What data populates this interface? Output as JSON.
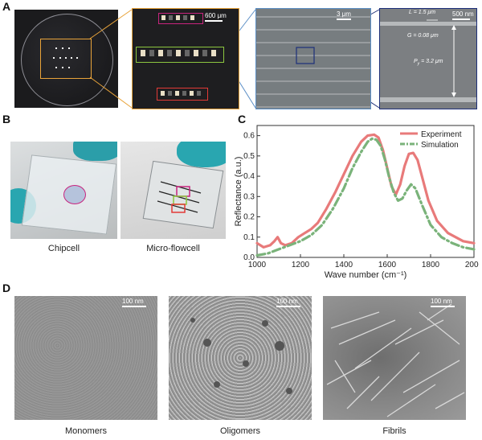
{
  "panels": {
    "A": {
      "label": "A",
      "scale_600": "600 μm",
      "scale_3": "3 μm",
      "scale_500": "500 nm",
      "L": "L = 1.5 μm",
      "G": "G = 0.08 μm",
      "Py": "P",
      "Py_sub": "y",
      "Py_val": " = 3.2 μm",
      "colors": {
        "orange": "#e8a33a",
        "magenta": "#c8247e",
        "green": "#8cc63f",
        "red": "#e23a36",
        "steel": "#5c8fc6",
        "navy": "#1d2f7a"
      }
    },
    "B": {
      "label": "B",
      "cap_left": "Chipcell",
      "cap_right": "Micro-flowcell"
    },
    "C": {
      "label": "C"
    },
    "D": {
      "label": "D",
      "scale": "100 nm",
      "cap1": "Monomers",
      "cap2": "Oligomers",
      "cap3": "Fibrils"
    }
  },
  "chart_data": {
    "type": "line",
    "title": "",
    "xlabel": "Wave number (cm⁻¹)",
    "ylabel": "Reflectance (a.u.)",
    "xlim": [
      1000,
      2000
    ],
    "ylim": [
      0,
      0.65
    ],
    "xticks": [
      1000,
      1200,
      1400,
      1600,
      1800,
      2000
    ],
    "yticks": [
      0.0,
      0.1,
      0.2,
      0.3,
      0.4,
      0.5,
      0.6
    ],
    "legend_position": "top-right",
    "series": [
      {
        "name": "Experiment",
        "color": "#e87a7a",
        "style": "solid",
        "x": [
          1000,
          1030,
          1060,
          1080,
          1095,
          1110,
          1130,
          1160,
          1190,
          1220,
          1250,
          1280,
          1320,
          1360,
          1400,
          1440,
          1480,
          1510,
          1540,
          1560,
          1580,
          1600,
          1620,
          1640,
          1660,
          1680,
          1700,
          1720,
          1740,
          1760,
          1790,
          1830,
          1880,
          1950,
          2000
        ],
        "y": [
          0.07,
          0.05,
          0.06,
          0.08,
          0.1,
          0.07,
          0.06,
          0.07,
          0.1,
          0.12,
          0.14,
          0.17,
          0.24,
          0.32,
          0.41,
          0.5,
          0.57,
          0.6,
          0.605,
          0.59,
          0.53,
          0.44,
          0.35,
          0.31,
          0.36,
          0.45,
          0.51,
          0.515,
          0.48,
          0.4,
          0.28,
          0.18,
          0.12,
          0.08,
          0.07
        ]
      },
      {
        "name": "Simulation",
        "color": "#7ab37a",
        "style": "dashdot",
        "x": [
          1000,
          1050,
          1100,
          1150,
          1200,
          1250,
          1300,
          1350,
          1400,
          1440,
          1480,
          1510,
          1530,
          1550,
          1570,
          1590,
          1610,
          1630,
          1650,
          1670,
          1690,
          1710,
          1730,
          1760,
          1800,
          1850,
          1900,
          1950,
          2000
        ],
        "y": [
          0.01,
          0.02,
          0.04,
          0.06,
          0.08,
          0.11,
          0.16,
          0.24,
          0.34,
          0.44,
          0.52,
          0.57,
          0.585,
          0.58,
          0.55,
          0.48,
          0.39,
          0.32,
          0.28,
          0.29,
          0.33,
          0.36,
          0.34,
          0.26,
          0.16,
          0.1,
          0.07,
          0.05,
          0.04
        ]
      }
    ]
  }
}
